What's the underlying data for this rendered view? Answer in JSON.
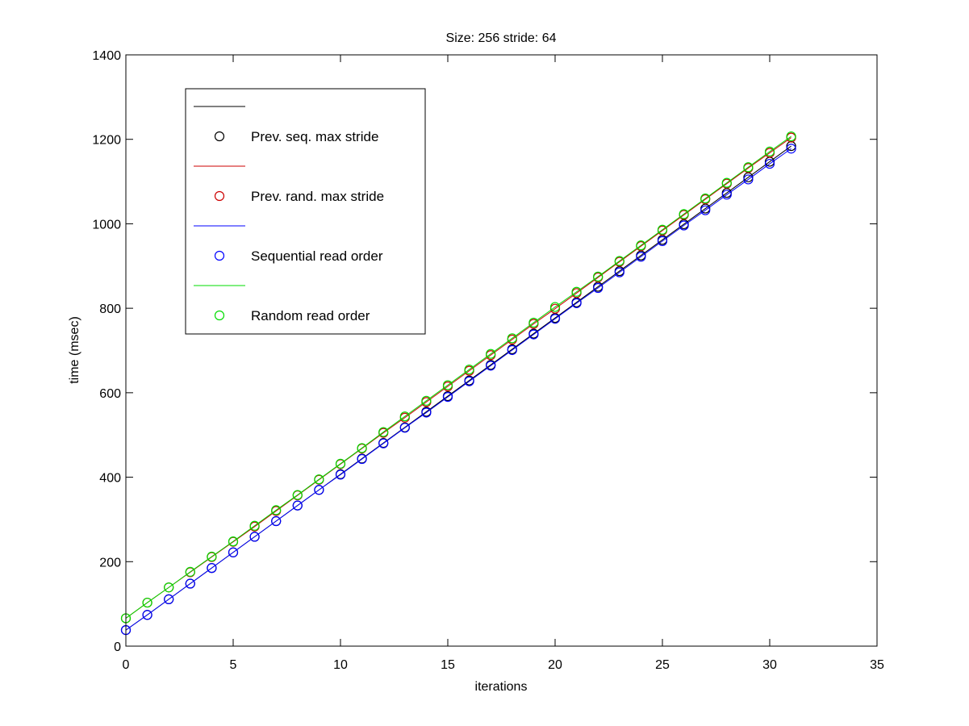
{
  "chart_data": {
    "type": "line",
    "title": "Size: 256 stride: 64",
    "xlabel": "iterations",
    "ylabel": "time (msec)",
    "xlim": [
      0,
      35
    ],
    "ylim": [
      0,
      1400
    ],
    "xticks": [
      0,
      5,
      10,
      15,
      20,
      25,
      30,
      35
    ],
    "yticks": [
      0,
      200,
      400,
      600,
      800,
      1000,
      1200,
      1400
    ],
    "grid": false,
    "legend_position": "top-left",
    "x": [
      0,
      1,
      2,
      3,
      4,
      5,
      6,
      7,
      8,
      9,
      10,
      11,
      12,
      13,
      14,
      15,
      16,
      17,
      18,
      19,
      20,
      21,
      22,
      23,
      24,
      25,
      26,
      27,
      28,
      29,
      30,
      31
    ],
    "series": [
      {
        "name": "Prev. seq. max stride",
        "color": "#000000",
        "line": true,
        "markers": true,
        "values": [
          38,
          74,
          111,
          148,
          185,
          222,
          259,
          296,
          333,
          370,
          407,
          444,
          481,
          518,
          555,
          592,
          629,
          666,
          703,
          740,
          777,
          814,
          851,
          888,
          925,
          962,
          999,
          1036,
          1073,
          1110,
          1147,
          1184
        ]
      },
      {
        "name": "Prev. rand. max stride",
        "color": "#cc0000",
        "line": true,
        "markers": true,
        "values": [
          66,
          103,
          139,
          175,
          211,
          247,
          283,
          320,
          357,
          394,
          431,
          468,
          505,
          541,
          578,
          615,
          652,
          689,
          726,
          763,
          799,
          836,
          873,
          910,
          947,
          984,
          1021,
          1058,
          1095,
          1132,
          1168,
          1204
        ]
      },
      {
        "name": "Sequential read order",
        "color": "#0000ff",
        "line": true,
        "markers": true,
        "values": [
          38,
          74,
          111,
          148,
          185,
          222,
          259,
          296,
          333,
          370,
          406,
          443,
          480,
          517,
          553,
          590,
          627,
          664,
          701,
          738,
          775,
          812,
          848,
          885,
          922,
          959,
          996,
          1032,
          1069,
          1105,
          1142,
          1178
        ]
      },
      {
        "name": "Random read order",
        "color": "#00dd00",
        "line": true,
        "markers": true,
        "values": [
          66,
          103,
          139,
          176,
          212,
          248,
          285,
          322,
          358,
          395,
          432,
          469,
          507,
          544,
          581,
          618,
          655,
          692,
          729,
          766,
          803,
          839,
          875,
          912,
          949,
          986,
          1023,
          1060,
          1097,
          1134,
          1171,
          1207
        ]
      }
    ]
  }
}
